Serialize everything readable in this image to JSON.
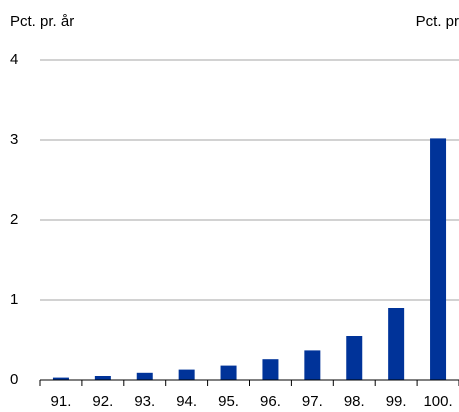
{
  "chart_data": {
    "type": "bar",
    "y_label_left": "Pct. pr. år",
    "y_label_right": "Pct. pr",
    "categories": [
      "91.",
      "92.",
      "93.",
      "94.",
      "95.",
      "96.",
      "97.",
      "98.",
      "99.",
      "100."
    ],
    "values": [
      0.03,
      0.05,
      0.09,
      0.13,
      0.18,
      0.26,
      0.37,
      0.55,
      0.9,
      3.02
    ],
    "color": "#003399",
    "ylim": [
      0,
      4
    ],
    "yticks": [
      0,
      1,
      2,
      3,
      4
    ],
    "grid": true
  }
}
